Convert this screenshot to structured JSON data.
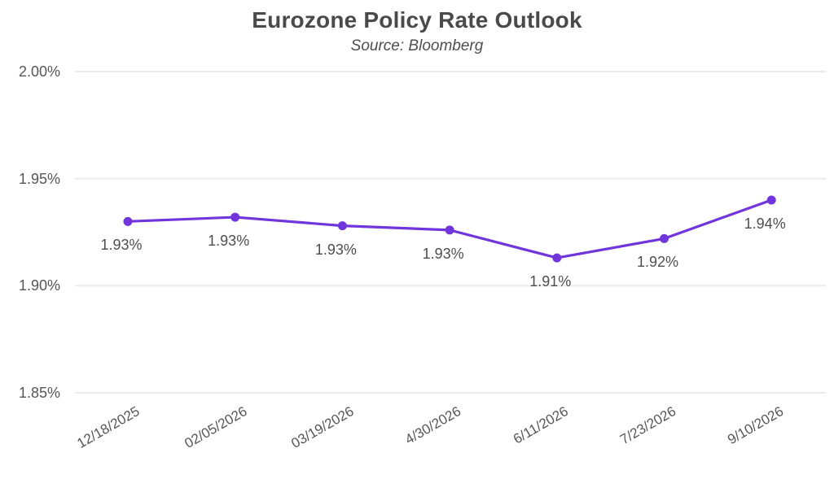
{
  "chart_data": {
    "type": "line",
    "title": "Eurozone Policy Rate Outlook",
    "subtitle": "Source: Bloomberg",
    "x": [
      "12/18/2025",
      "02/05/2026",
      "03/19/2026",
      "4/30/2026",
      "6/11/2026",
      "7/23/2026",
      "9/10/2026"
    ],
    "series": [
      {
        "point_labels": [
          "1.93%",
          "1.93%",
          "1.93%",
          "1.93%",
          "1.91%",
          "1.92%",
          "1.94%"
        ],
        "values": [
          1.93,
          1.93,
          1.93,
          1.93,
          1.91,
          1.92,
          1.94
        ],
        "values_plotted_est": [
          1.93,
          1.932,
          1.928,
          1.926,
          1.913,
          1.922,
          1.94
        ]
      }
    ],
    "xlabel": "",
    "ylabel": "",
    "ylim": [
      1.85,
      2.0
    ],
    "yticks": [
      {
        "value": 2.0,
        "label": "2.00%"
      },
      {
        "value": 1.95,
        "label": "1.95%"
      },
      {
        "value": 1.9,
        "label": "1.90%"
      },
      {
        "value": 1.85,
        "label": "1.85%"
      }
    ],
    "grid": true,
    "legend": "none",
    "colors": {
      "line": "#7035DB",
      "marker": "#7035DB",
      "gridline": "#ebebeb",
      "title_text": "#4a4a4a",
      "subtitle_text": "#4e4e4e",
      "tick_text": "#565656",
      "point_label_text": "#4e4e4e",
      "background": "#ffffff"
    }
  }
}
